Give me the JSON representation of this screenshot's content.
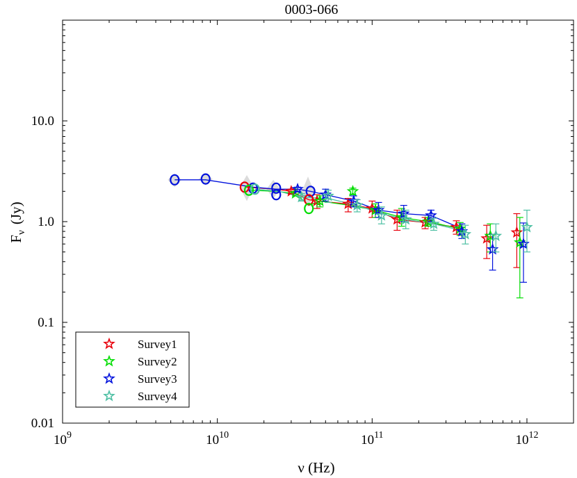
{
  "chart_data": {
    "type": "scatter",
    "title": "0003-066",
    "xlabel": "ν (Hz)",
    "ylabel_main": "F",
    "ylabel_sub": "ν",
    "ylabel_unit": "(Jy)",
    "x_scale": "log",
    "y_scale": "log",
    "xlim": [
      1000000000.0,
      2000000000000.0
    ],
    "ylim": [
      0.01,
      100
    ],
    "x_ticks": [
      {
        "value": 1000000000.0,
        "base": "10",
        "exp": "9"
      },
      {
        "value": 10000000000.0,
        "base": "10",
        "exp": "10"
      },
      {
        "value": 100000000000.0,
        "base": "10",
        "exp": "11"
      },
      {
        "value": 1000000000000.0,
        "base": "10",
        "exp": "12"
      }
    ],
    "y_ticks": [
      {
        "value": 0.01,
        "label": "0.01"
      },
      {
        "value": 0.1,
        "label": "0.1"
      },
      {
        "value": 1,
        "label": "1.0"
      },
      {
        "value": 10,
        "label": "10.0"
      }
    ],
    "legend_position": "bottom-left",
    "line_series": [
      {
        "name": "Survey1",
        "color": "#e8000b",
        "x": [
          15000000000.0,
          24000000000.0,
          30000000000.0,
          39000000000.0,
          44000000000.0,
          70000000000.0,
          100000000000.0,
          145000000000.0,
          220000000000.0,
          350000000000.0
        ],
        "y": [
          2.2,
          2.1,
          2.0,
          1.65,
          1.6,
          1.5,
          1.35,
          1.05,
          0.98,
          0.88
        ]
      },
      {
        "name": "Survey2",
        "color": "#00dd00",
        "x": [
          16000000000.0,
          24000000000.0,
          32000000000.0,
          39000000000.0,
          46000000000.0,
          72000000000.0,
          105000000000.0,
          155000000000.0,
          230000000000.0,
          370000000000.0
        ],
        "y": [
          2.05,
          2.0,
          1.9,
          1.45,
          1.6,
          1.45,
          1.3,
          1.1,
          1.0,
          0.85
        ]
      },
      {
        "name": "Survey3",
        "color": "#0011dd",
        "x": [
          5300000000.0,
          8400000000.0,
          17000000000.0,
          24000000000.0,
          33000000000.0,
          40000000000.0,
          50000000000.0,
          76000000000.0,
          110000000000.0,
          160000000000.0,
          240000000000.0,
          380000000000.0
        ],
        "y": [
          2.6,
          2.6,
          2.2,
          2.1,
          2.1,
          2.0,
          1.85,
          1.6,
          1.3,
          1.2,
          1.15,
          0.85
        ]
      },
      {
        "name": "Survey4",
        "color": "#4dbfa3",
        "x": [
          17500000000.0,
          25000000000.0,
          35000000000.0,
          52000000000.0,
          80000000000.0,
          115000000000.0,
          165000000000.0,
          250000000000.0,
          400000000000.0
        ],
        "y": [
          2.1,
          2.0,
          1.75,
          1.7,
          1.45,
          1.2,
          1.05,
          0.95,
          0.8
        ]
      }
    ],
    "circle_points": [
      {
        "series": "Survey3",
        "x": 5300000000.0,
        "y": 2.6
      },
      {
        "series": "Survey3",
        "x": 8400000000.0,
        "y": 2.65
      },
      {
        "series": "Survey3",
        "x": 17000000000.0,
        "y": 2.15
      },
      {
        "series": "Survey3",
        "x": 24000000000.0,
        "y": 2.15
      },
      {
        "series": "Survey3",
        "x": 24000000000.0,
        "y": 1.85
      },
      {
        "series": "Survey3",
        "x": 40000000000.0,
        "y": 2.0
      },
      {
        "series": "Survey1",
        "x": 15000000000.0,
        "y": 2.2
      },
      {
        "series": "Survey1",
        "x": 39000000000.0,
        "y": 1.65
      },
      {
        "series": "Survey2",
        "x": 16000000000.0,
        "y": 2.05
      },
      {
        "series": "Survey2",
        "x": 39000000000.0,
        "y": 1.35
      },
      {
        "series": "Survey4",
        "x": 17500000000.0,
        "y": 2.1
      }
    ],
    "shaded_points": [
      {
        "x": 5300000000.0,
        "y": 2.6,
        "lo": 2.2,
        "hi": 3.0
      },
      {
        "x": 8400000000.0,
        "y": 2.65,
        "lo": 2.3,
        "hi": 3.0
      },
      {
        "x": 15500000000.0,
        "y": 2.2,
        "lo": 1.6,
        "hi": 2.9
      },
      {
        "x": 23000000000.0,
        "y": 2.1,
        "lo": 1.7,
        "hi": 2.6
      },
      {
        "x": 38500000000.0,
        "y": 1.9,
        "lo": 1.4,
        "hi": 2.8
      }
    ],
    "star_series": [
      {
        "name": "Survey1",
        "color": "#e8000b",
        "points": [
          {
            "x": 30000000000.0,
            "y": 2.0,
            "lo": 1.9,
            "hi": 2.1
          },
          {
            "x": 44000000000.0,
            "y": 1.6,
            "lo": 1.35,
            "hi": 1.85
          },
          {
            "x": 70000000000.0,
            "y": 1.5,
            "lo": 1.25,
            "hi": 1.7
          },
          {
            "x": 100000000000.0,
            "y": 1.35,
            "lo": 1.1,
            "hi": 1.6
          },
          {
            "x": 145000000000.0,
            "y": 1.05,
            "lo": 0.82,
            "hi": 1.3
          },
          {
            "x": 220000000000.0,
            "y": 0.98,
            "lo": 0.85,
            "hi": 1.1
          },
          {
            "x": 350000000000.0,
            "y": 0.88,
            "lo": 0.75,
            "hi": 1.02
          },
          {
            "x": 550000000000.0,
            "y": 0.68,
            "lo": 0.43,
            "hi": 0.92
          },
          {
            "x": 860000000000.0,
            "y": 0.78,
            "lo": 0.35,
            "hi": 1.2
          }
        ]
      },
      {
        "name": "Survey2",
        "color": "#00dd00",
        "points": [
          {
            "x": 32000000000.0,
            "y": 1.9,
            "lo": 1.8,
            "hi": 2.0
          },
          {
            "x": 46000000000.0,
            "y": 1.6,
            "lo": 1.4,
            "hi": 1.8
          },
          {
            "x": 75000000000.0,
            "y": 2.0,
            "lo": 1.85,
            "hi": 2.15
          },
          {
            "x": 105000000000.0,
            "y": 1.3,
            "lo": 1.1,
            "hi": 1.5
          },
          {
            "x": 155000000000.0,
            "y": 1.1,
            "lo": 0.9,
            "hi": 1.35
          },
          {
            "x": 230000000000.0,
            "y": 1.0,
            "lo": 0.9,
            "hi": 1.1
          },
          {
            "x": 370000000000.0,
            "y": 0.85,
            "lo": 0.73,
            "hi": 0.98
          },
          {
            "x": 580000000000.0,
            "y": 0.72,
            "lo": 0.5,
            "hi": 0.95
          },
          {
            "x": 900000000000.0,
            "y": 0.62,
            "lo": 0.175,
            "hi": 1.1
          }
        ]
      },
      {
        "name": "Survey3",
        "color": "#0011dd",
        "points": [
          {
            "x": 33000000000.0,
            "y": 2.1,
            "lo": 2.0,
            "hi": 2.2
          },
          {
            "x": 50000000000.0,
            "y": 1.85,
            "lo": 1.6,
            "hi": 2.1
          },
          {
            "x": 76000000000.0,
            "y": 1.6,
            "lo": 1.4,
            "hi": 1.8
          },
          {
            "x": 110000000000.0,
            "y": 1.3,
            "lo": 1.1,
            "hi": 1.55
          },
          {
            "x": 160000000000.0,
            "y": 1.2,
            "lo": 1.0,
            "hi": 1.45
          },
          {
            "x": 240000000000.0,
            "y": 1.15,
            "lo": 1.0,
            "hi": 1.3
          },
          {
            "x": 380000000000.0,
            "y": 0.8,
            "lo": 0.68,
            "hi": 0.95
          },
          {
            "x": 600000000000.0,
            "y": 0.53,
            "lo": 0.33,
            "hi": 0.75
          },
          {
            "x": 950000000000.0,
            "y": 0.6,
            "lo": 0.25,
            "hi": 0.97
          }
        ]
      },
      {
        "name": "Survey4",
        "color": "#4dbfa3",
        "points": [
          {
            "x": 35000000000.0,
            "y": 1.75,
            "lo": 1.6,
            "hi": 1.9
          },
          {
            "x": 52000000000.0,
            "y": 1.8,
            "lo": 1.55,
            "hi": 2.05
          },
          {
            "x": 80000000000.0,
            "y": 1.45,
            "lo": 1.25,
            "hi": 1.65
          },
          {
            "x": 115000000000.0,
            "y": 1.15,
            "lo": 0.95,
            "hi": 1.4
          },
          {
            "x": 165000000000.0,
            "y": 1.05,
            "lo": 0.85,
            "hi": 1.3
          },
          {
            "x": 250000000000.0,
            "y": 0.95,
            "lo": 0.82,
            "hi": 1.08
          },
          {
            "x": 400000000000.0,
            "y": 0.75,
            "lo": 0.6,
            "hi": 0.92
          },
          {
            "x": 630000000000.0,
            "y": 0.72,
            "lo": 0.5,
            "hi": 0.95
          },
          {
            "x": 1000000000000.0,
            "y": 0.88,
            "lo": 0.5,
            "hi": 1.3
          }
        ]
      }
    ],
    "legend": [
      {
        "label": "Survey1",
        "color": "#e8000b"
      },
      {
        "label": "Survey2",
        "color": "#00dd00"
      },
      {
        "label": "Survey3",
        "color": "#0011dd"
      },
      {
        "label": "Survey4",
        "color": "#4dbfa3"
      }
    ]
  }
}
